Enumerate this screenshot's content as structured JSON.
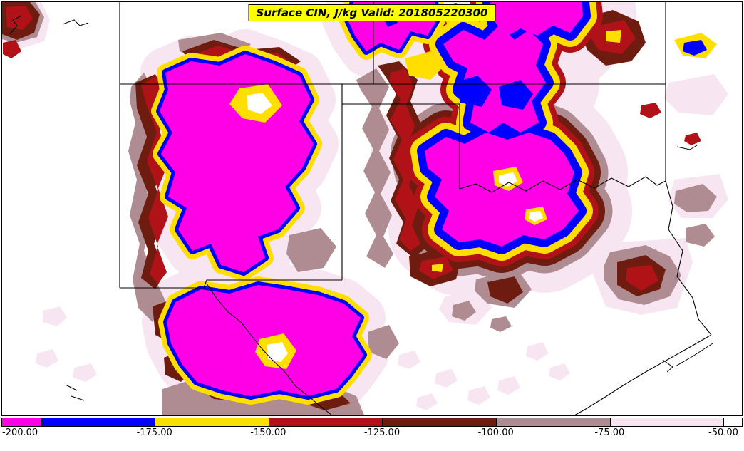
{
  "title": {
    "text": "Surface CIN, J/kg Valid: 201805220300",
    "background": "#FFFF00"
  },
  "colorbar": {
    "tick_labels": [
      "-200.00",
      "-175.00",
      "-150.00",
      "-125.00",
      "-100.00",
      "-75.00",
      "-50.00"
    ],
    "segments": [
      {
        "range": "below -200",
        "color": "#FF00E6"
      },
      {
        "range": "-200 to -175",
        "color": "#0000FF"
      },
      {
        "range": "-175 to -150",
        "color": "#FFDE00"
      },
      {
        "range": "-150 to -125",
        "color": "#B11218"
      },
      {
        "range": "-125 to -100",
        "color": "#6E1C10"
      },
      {
        "range": "-100 to -75",
        "color": "#AF8C92"
      },
      {
        "range": "-75 to -50",
        "color": "#F7E6F1"
      },
      {
        "range": "above -50",
        "color": "#FFFFFF"
      }
    ]
  },
  "colors": {
    "magenta": "#FF00E6",
    "blue": "#0000FF",
    "yellow": "#FFDE00",
    "crimson": "#B11218",
    "maroon": "#6E1C10",
    "mauve": "#AF8C92",
    "pale_pink": "#F7E6F1",
    "map_background": "#FFFFFF",
    "line": "#000000",
    "hole_white": "#FFFFFF"
  },
  "chart_data": {
    "type": "heatmap",
    "title": "Surface CIN, J/kg Valid: 201805220300",
    "variable": "Surface CIN",
    "units": "J/kg",
    "valid_time": "201805220300",
    "levels": [
      -200,
      -175,
      -150,
      -125,
      -100,
      -75,
      -50
    ],
    "level_colors": [
      "#FF00E6",
      "#0000FF",
      "#FFDE00",
      "#B11218",
      "#6E1C10",
      "#AF8C92",
      "#F7E6F1"
    ],
    "colorbar_position": "bottom",
    "region": "South-central United States (CO, NM, KS, OK, TX)"
  }
}
